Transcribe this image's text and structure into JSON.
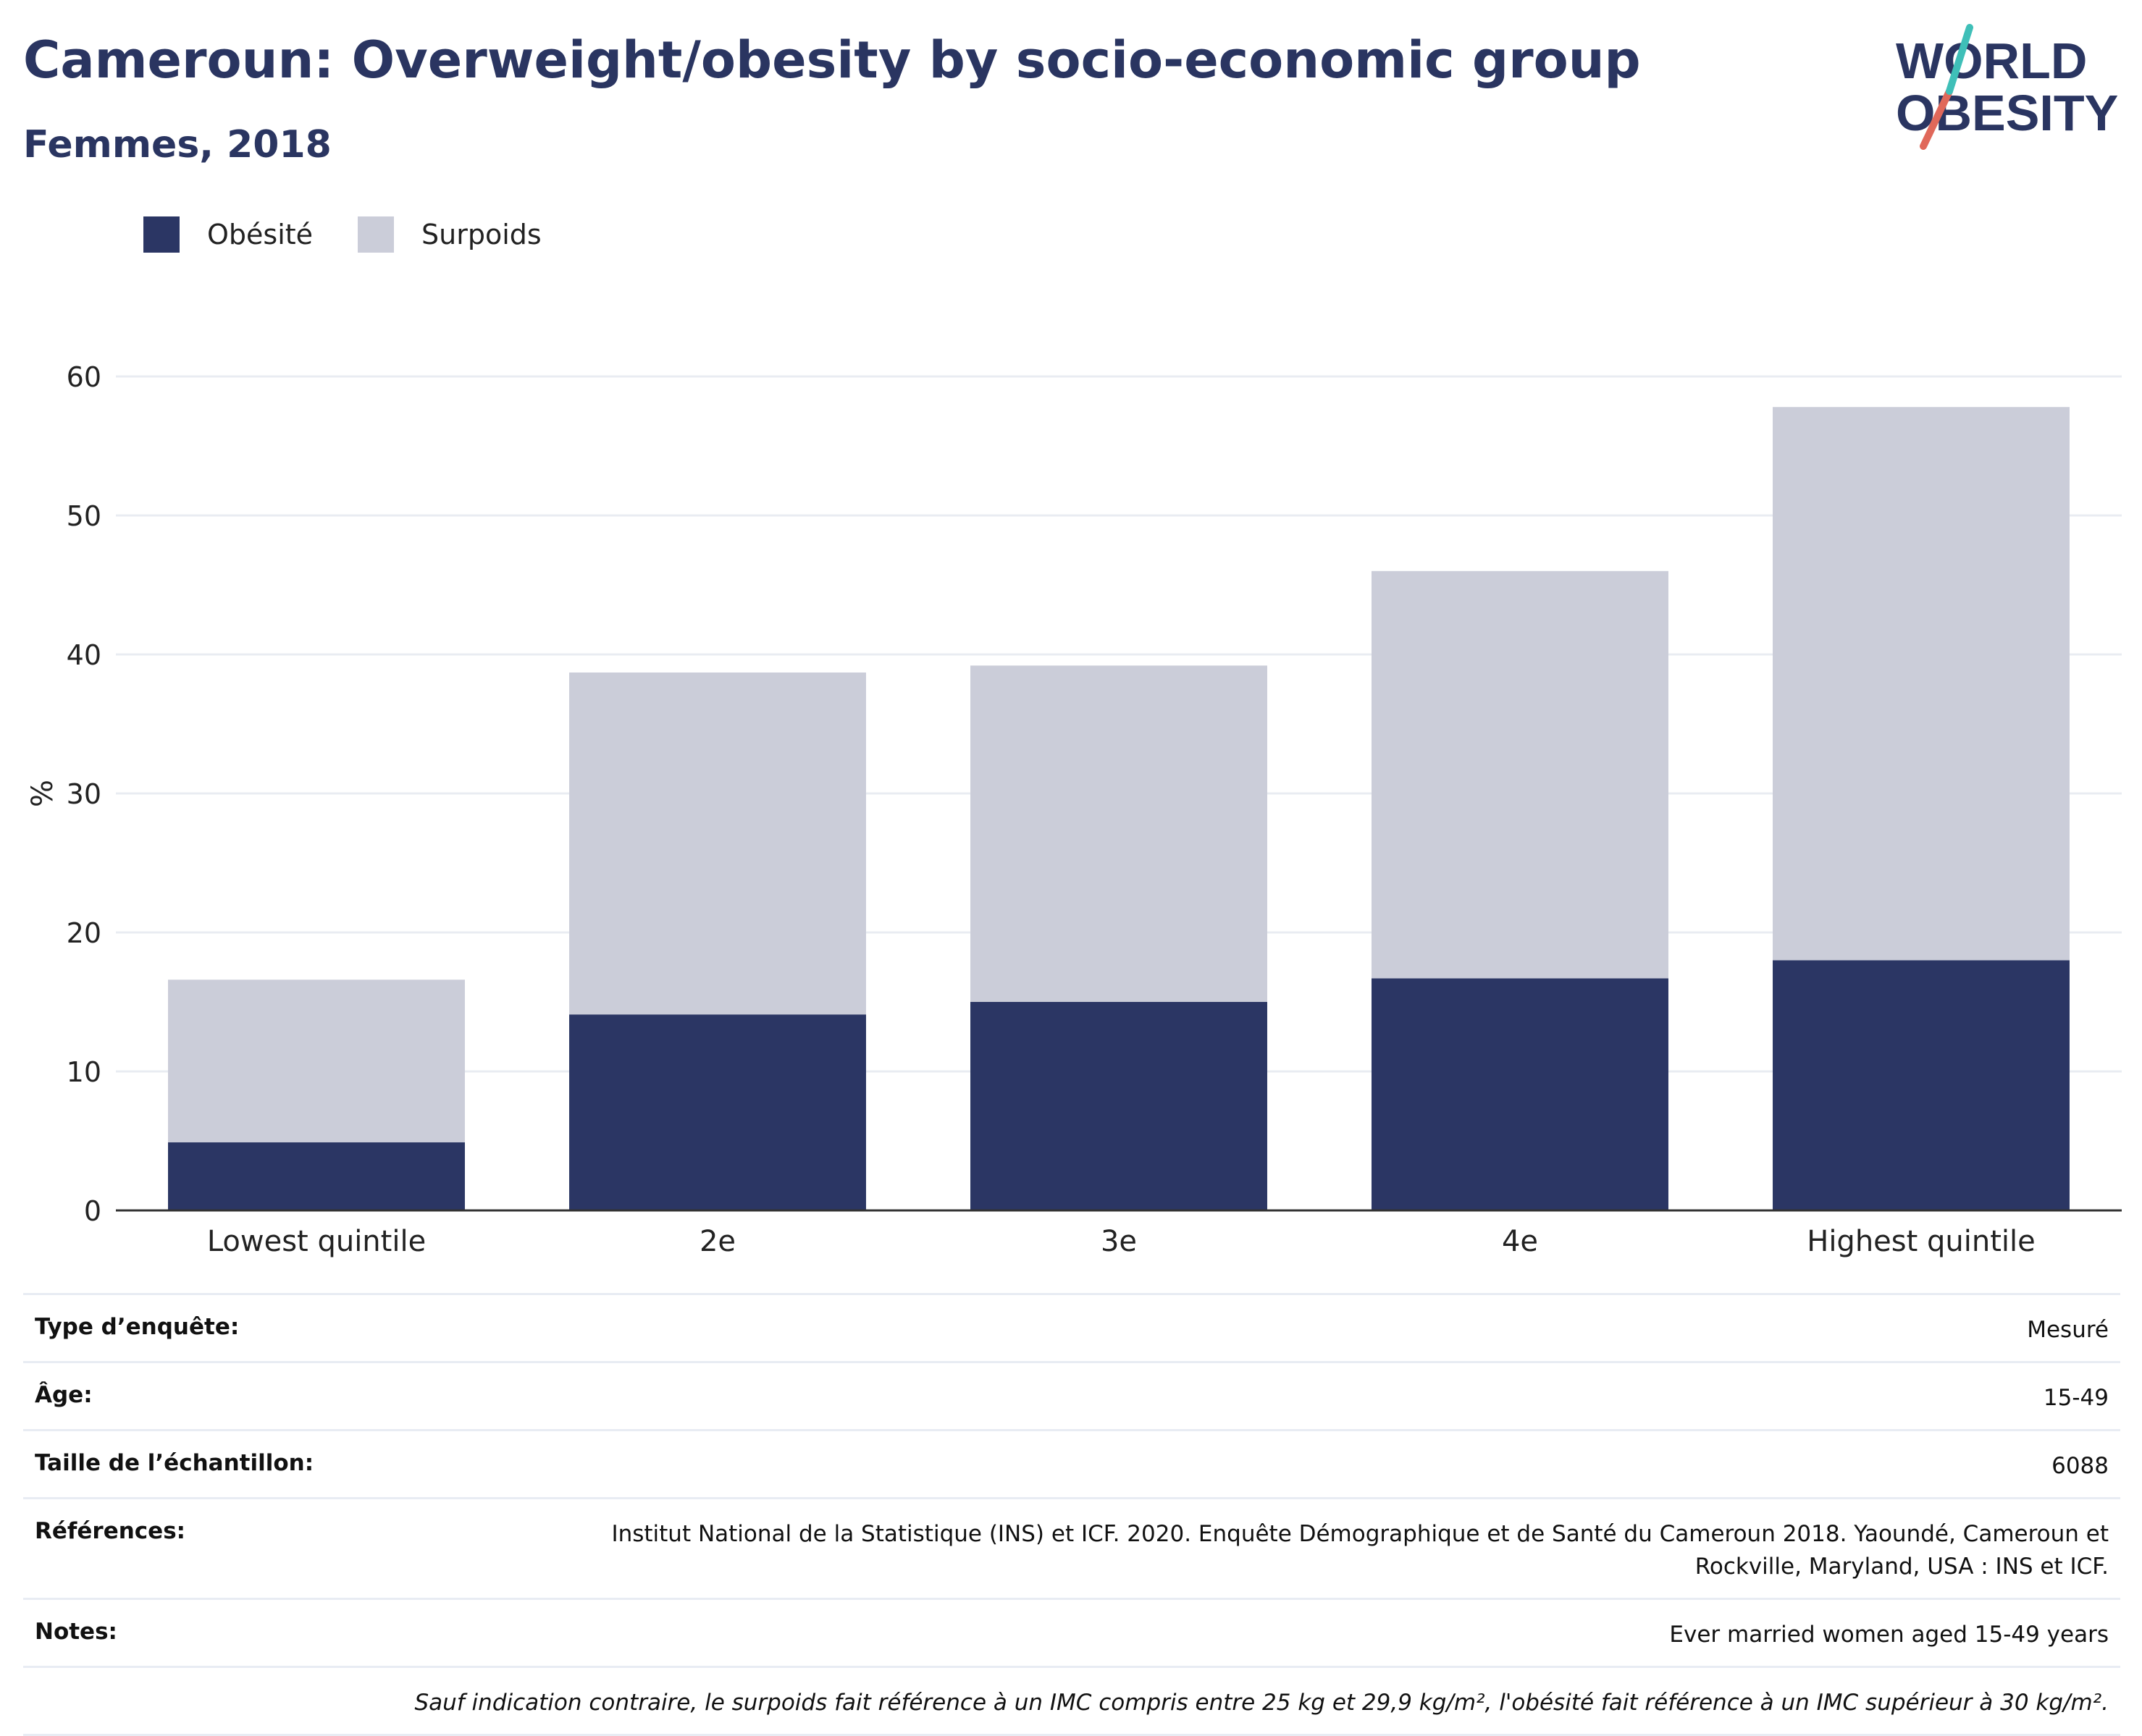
{
  "header": {
    "title": "Cameroun: Overweight/obesity by socio-economic group",
    "subtitle": "Femmes, 2018"
  },
  "logo": {
    "line1": "WORLD",
    "line2": "OBESITY",
    "icon": "world-obesity-logo"
  },
  "colors": {
    "obesity": "#2b3664",
    "overweight": "#cbcdd9",
    "text": "#2a3561",
    "grid": "#e9ecf2",
    "axis": "#333333"
  },
  "legend": {
    "items": [
      {
        "label": "Obésité"
      },
      {
        "label": "Surpoids"
      }
    ]
  },
  "chart_data": {
    "type": "bar",
    "stacked": true,
    "categories": [
      "Lowest quintile",
      "2e",
      "3e",
      "4e",
      "Highest quintile"
    ],
    "series": [
      {
        "name": "Obésité",
        "values": [
          4.9,
          14.1,
          15.0,
          16.7,
          18.0
        ]
      },
      {
        "name": "Surpoids",
        "values": [
          11.7,
          24.6,
          24.2,
          29.3,
          39.8
        ]
      }
    ],
    "ylabel": "%",
    "ylim": [
      0,
      60
    ],
    "yticks": [
      0,
      10,
      20,
      30,
      40,
      50,
      60
    ],
    "grid": true,
    "legend_position": "top-left"
  },
  "info": {
    "rows": [
      {
        "key": "Type d’enquête:",
        "value": "Mesuré"
      },
      {
        "key": "Âge:",
        "value": "15-49"
      },
      {
        "key": "Taille de l’échantillon:",
        "value": "6088"
      },
      {
        "key": "Références:",
        "value": "Institut National de la Statistique (INS) et ICF. 2020. Enquête Démographique et de Santé du Cameroun 2018. Yaoundé, Cameroun et Rockville, Maryland, USA : INS et ICF."
      },
      {
        "key": "Notes:",
        "value": "Ever married women aged 15-49 years"
      }
    ],
    "footnote": "Sauf indication contraire, le surpoids fait référence à un IMC compris entre 25 kg et 29,9 kg/m², l'obésité fait référence à un IMC supérieur à 30 kg/m²."
  }
}
